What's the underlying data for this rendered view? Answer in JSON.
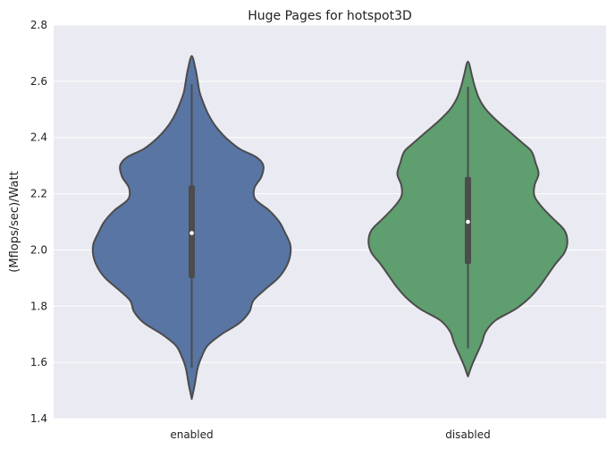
{
  "chart_data": {
    "type": "violin",
    "title": "Huge Pages for hotspot3D",
    "xlabel": "",
    "ylabel": "(Mflops/sec)/Watt",
    "ylim": [
      1.4,
      2.8
    ],
    "yticks": [
      "1.4",
      "1.6",
      "1.8",
      "2.0",
      "2.2",
      "2.4",
      "2.6",
      "2.8"
    ],
    "grid": true,
    "categories": [
      "enabled",
      "disabled"
    ],
    "colors": {
      "background": "#eaeaf2",
      "grid": "#ffffff",
      "outline": "#4c4c4c",
      "series": [
        "#5875a4",
        "#5f9e6e"
      ]
    },
    "series": [
      {
        "category": "enabled",
        "median": 2.06,
        "q1": 1.9,
        "q3": 2.23,
        "whisker_low": 1.58,
        "whisker_high": 2.59,
        "violin": {
          "y": [
            1.47,
            1.52,
            1.58,
            1.62,
            1.66,
            1.7,
            1.74,
            1.78,
            1.82,
            1.86,
            1.9,
            1.94,
            1.98,
            2.02,
            2.06,
            2.1,
            2.14,
            2.18,
            2.22,
            2.26,
            2.3,
            2.33,
            2.36,
            2.4,
            2.44,
            2.48,
            2.52,
            2.56,
            2.6,
            2.64,
            2.69
          ],
          "width": [
            0.0,
            0.03,
            0.06,
            0.1,
            0.16,
            0.3,
            0.48,
            0.58,
            0.62,
            0.74,
            0.87,
            0.95,
            0.99,
            0.99,
            0.94,
            0.88,
            0.78,
            0.64,
            0.63,
            0.7,
            0.72,
            0.65,
            0.48,
            0.34,
            0.24,
            0.17,
            0.12,
            0.08,
            0.06,
            0.04,
            0.0
          ]
        }
      },
      {
        "category": "disabled",
        "median": 2.1,
        "q1": 1.95,
        "q3": 2.26,
        "whisker_low": 1.65,
        "whisker_high": 2.58,
        "violin": {
          "y": [
            1.55,
            1.59,
            1.63,
            1.67,
            1.71,
            1.75,
            1.79,
            1.83,
            1.87,
            1.91,
            1.95,
            1.99,
            2.03,
            2.07,
            2.11,
            2.15,
            2.19,
            2.23,
            2.27,
            2.31,
            2.35,
            2.38,
            2.42,
            2.46,
            2.5,
            2.54,
            2.58,
            2.62,
            2.67
          ],
          "width": [
            0.0,
            0.04,
            0.09,
            0.14,
            0.18,
            0.28,
            0.48,
            0.62,
            0.72,
            0.8,
            0.88,
            0.97,
            1.0,
            0.97,
            0.86,
            0.75,
            0.67,
            0.67,
            0.71,
            0.68,
            0.64,
            0.55,
            0.42,
            0.29,
            0.18,
            0.11,
            0.07,
            0.04,
            0.0
          ]
        }
      }
    ]
  }
}
